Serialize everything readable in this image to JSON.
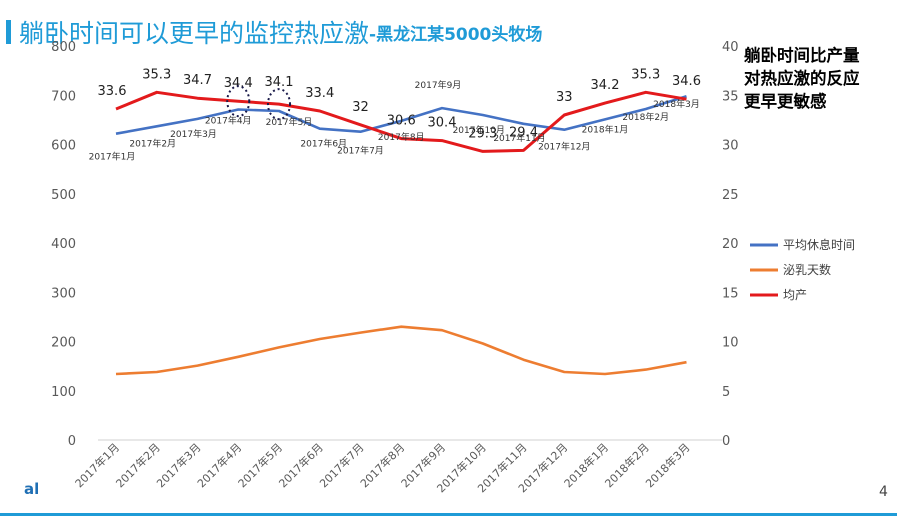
{
  "slide": {
    "title_main": "躺卧时间可以更早的监控热应激",
    "title_sub": "-黑龙江某5000头牧场",
    "side_note": [
      "躺卧时间比产量",
      "对热应激的反应",
      "更早更敏感"
    ],
    "page_number": "4",
    "logo_fragment": "al"
  },
  "chart_data": {
    "type": "line",
    "categories": [
      "2017年1月",
      "2017年2月",
      "2017年3月",
      "2017年4月",
      "2017年5月",
      "2017年6月",
      "2017年7月",
      "2017年8月",
      "2017年9月",
      "2017年10月",
      "2017年11月",
      "2017年12月",
      "2018年1月",
      "2018年2月",
      "2018年3月"
    ],
    "left_axis": {
      "ylim": [
        0,
        800
      ],
      "ticks": [
        0,
        100,
        200,
        300,
        400,
        500,
        600,
        700,
        800
      ]
    },
    "right_axis": {
      "ylim": [
        0,
        40
      ],
      "ticks": [
        0,
        5,
        10,
        15,
        20,
        25,
        30,
        35,
        40
      ]
    },
    "series": [
      {
        "name": "平均休息时间",
        "axis": "left",
        "color": "#4472c4",
        "values": [
          622,
          637,
          652,
          671,
          668,
          632,
          626,
          648,
          674,
          660,
          642,
          630,
          651,
          672,
          698
        ]
      },
      {
        "name": "泌乳天数",
        "axis": "left",
        "color": "#ed7d31",
        "values": [
          134,
          138,
          151,
          169,
          188,
          205,
          218,
          230,
          223,
          196,
          163,
          138,
          134,
          143,
          158
        ]
      },
      {
        "name": "均产",
        "axis": "right",
        "color": "#e31a1c",
        "values": [
          33.6,
          35.3,
          34.7,
          34.4,
          34.1,
          33.4,
          32,
          30.6,
          30.4,
          29.3,
          29.4,
          33,
          34.2,
          35.3,
          34.6
        ],
        "labels": [
          "33.6",
          "35.3",
          "34.7",
          "34.4",
          "34.1",
          "33.4",
          "32",
          "30.6",
          "30.4",
          "29.3",
          "29.4",
          "33",
          "34.2",
          "35.3",
          "34.6"
        ]
      }
    ],
    "legend_position": "right",
    "grid": false,
    "annotations": [
      {
        "type": "dotted-circle",
        "x": "2017年4月",
        "y": 34.4,
        "axis": "right"
      },
      {
        "type": "dotted-circle",
        "x": "2017年5月",
        "y": 34.1,
        "axis": "right"
      }
    ]
  }
}
